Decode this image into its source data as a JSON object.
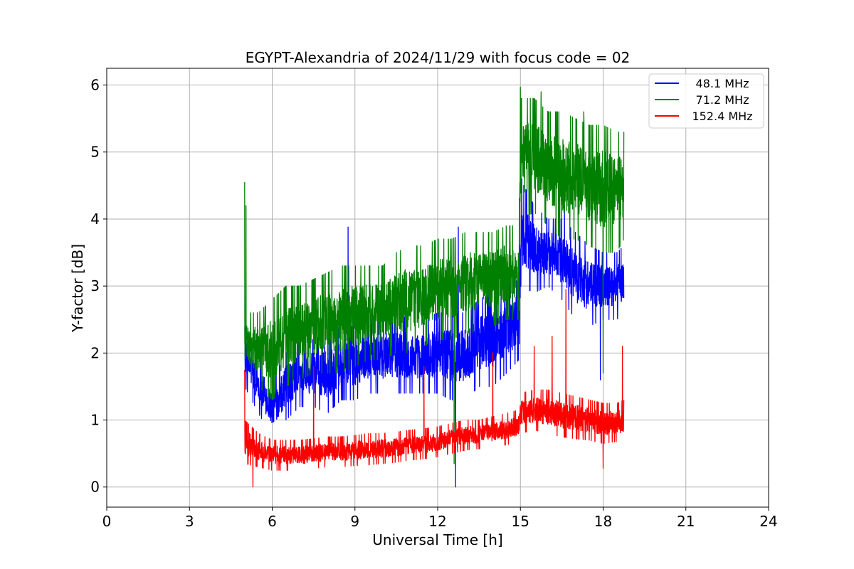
{
  "chart_data": {
    "type": "line",
    "title": "EGYPT-Alexandria of 2024/11/29 with focus code = 02",
    "xlabel": "Universal Time [h]",
    "ylabel": "Y-factor [dB]",
    "xlim": [
      0,
      24
    ],
    "ylim": [
      -0.3,
      6.25
    ],
    "xticks": [
      0,
      3,
      6,
      9,
      12,
      15,
      18,
      21,
      24
    ],
    "yticks": [
      0,
      1,
      2,
      3,
      4,
      5,
      6
    ],
    "xtick_labels": [
      "0",
      "3",
      "6",
      "9",
      "12",
      "15",
      "18",
      "21",
      "24"
    ],
    "ytick_labels": [
      "0",
      "1",
      "2",
      "3",
      "4",
      "5",
      "6"
    ],
    "grid": true,
    "legend_position": "top-right",
    "time_range": [
      5.0,
      18.75
    ],
    "series": [
      {
        "name": "48.1 MHz",
        "color": "#0000ff",
        "x": [
          5.0,
          5.5,
          6.0,
          6.5,
          7.0,
          7.5,
          8.0,
          8.5,
          9.0,
          9.5,
          10.0,
          10.5,
          11.0,
          11.5,
          12.0,
          12.5,
          13.0,
          13.5,
          14.0,
          14.5,
          14.95,
          15.0,
          15.5,
          16.0,
          16.5,
          17.0,
          17.5,
          18.0,
          18.5,
          18.75
        ],
        "y": [
          1.7,
          1.4,
          1.0,
          1.4,
          1.6,
          1.6,
          1.5,
          1.6,
          1.6,
          1.7,
          1.7,
          1.7,
          1.7,
          1.7,
          1.7,
          1.6,
          1.6,
          1.8,
          1.9,
          2.1,
          2.2,
          3.5,
          3.4,
          3.5,
          3.3,
          3.1,
          2.9,
          3.0,
          3.0,
          3.1
        ],
        "min": [
          1.5,
          1.1,
          0.75,
          1.0,
          1.2,
          1.2,
          1.1,
          1.3,
          1.3,
          1.4,
          1.4,
          1.4,
          1.4,
          1.4,
          1.4,
          1.3,
          1.3,
          1.5,
          1.5,
          1.7,
          1.9,
          3.0,
          2.9,
          3.0,
          2.8,
          2.5,
          2.4,
          2.5,
          2.5,
          2.6
        ],
        "max": [
          2.4,
          2.0,
          1.6,
          2.0,
          2.2,
          2.2,
          2.3,
          2.4,
          2.4,
          2.5,
          2.5,
          2.6,
          2.5,
          2.5,
          2.6,
          2.6,
          2.6,
          2.8,
          2.9,
          3.0,
          3.1,
          4.6,
          4.2,
          4.0,
          4.0,
          3.8,
          3.6,
          3.5,
          3.5,
          3.6
        ],
        "spikes": [
          [
            8.75,
            3.88
          ],
          [
            12.65,
            0.0
          ],
          [
            12.75,
            3.88
          ],
          [
            15.05,
            4.6
          ],
          [
            16.6,
            4.2
          ],
          [
            17.9,
            1.6
          ]
        ]
      },
      {
        "name": "71.2 MHz",
        "color": "#008000",
        "x": [
          5.0,
          5.5,
          6.0,
          6.5,
          7.0,
          7.5,
          8.0,
          8.5,
          9.0,
          9.5,
          10.0,
          10.5,
          11.0,
          11.5,
          12.0,
          12.5,
          13.0,
          13.5,
          14.0,
          14.5,
          14.95,
          15.0,
          15.5,
          16.0,
          16.5,
          17.0,
          17.5,
          18.0,
          18.5,
          18.75
        ],
        "y": [
          2.0,
          1.9,
          2.0,
          2.1,
          2.1,
          2.1,
          2.2,
          2.2,
          2.3,
          2.3,
          2.3,
          2.4,
          2.5,
          2.5,
          2.6,
          2.6,
          2.7,
          2.7,
          2.8,
          2.9,
          3.0,
          4.8,
          4.8,
          4.6,
          4.5,
          4.5,
          4.4,
          4.3,
          4.3,
          4.4
        ],
        "min": [
          1.7,
          1.5,
          1.3,
          1.5,
          1.6,
          1.7,
          1.7,
          1.7,
          1.8,
          1.9,
          1.9,
          2.0,
          2.0,
          2.1,
          2.2,
          2.2,
          2.3,
          2.3,
          2.4,
          2.5,
          2.5,
          4.0,
          4.1,
          3.9,
          3.7,
          3.7,
          3.6,
          3.5,
          3.5,
          3.7
        ],
        "max": [
          2.6,
          2.6,
          2.8,
          3.0,
          3.0,
          3.1,
          3.2,
          3.3,
          3.3,
          3.3,
          3.3,
          3.5,
          3.6,
          3.6,
          3.7,
          3.7,
          3.8,
          3.8,
          3.8,
          3.9,
          3.9,
          5.8,
          5.8,
          5.6,
          5.6,
          5.5,
          5.4,
          5.4,
          5.3,
          5.3
        ],
        "spikes": [
          [
            5.0,
            4.55
          ],
          [
            5.05,
            4.2
          ],
          [
            12.6,
            0.35
          ],
          [
            15.0,
            5.97
          ],
          [
            15.75,
            5.9
          ],
          [
            17.3,
            5.6
          ],
          [
            18.0,
            1.7
          ]
        ]
      },
      {
        "name": "152.4 MHz",
        "color": "#ff0000",
        "x": [
          5.0,
          5.5,
          6.0,
          6.5,
          7.0,
          7.5,
          8.0,
          8.5,
          9.0,
          9.5,
          10.0,
          10.5,
          11.0,
          11.5,
          12.0,
          12.5,
          13.0,
          13.5,
          14.0,
          14.5,
          14.95,
          15.0,
          15.5,
          16.0,
          16.5,
          17.0,
          17.5,
          18.0,
          18.5,
          18.75
        ],
        "y": [
          0.6,
          0.45,
          0.4,
          0.4,
          0.4,
          0.42,
          0.45,
          0.45,
          0.47,
          0.5,
          0.5,
          0.52,
          0.55,
          0.57,
          0.6,
          0.65,
          0.7,
          0.72,
          0.75,
          0.8,
          0.85,
          1.0,
          1.05,
          1.05,
          1.0,
          1.0,
          0.95,
          0.9,
          0.9,
          0.95
        ],
        "min": [
          0.35,
          0.3,
          0.25,
          0.25,
          0.25,
          0.28,
          0.3,
          0.3,
          0.32,
          0.33,
          0.35,
          0.37,
          0.4,
          0.42,
          0.45,
          0.5,
          0.55,
          0.57,
          0.6,
          0.63,
          0.67,
          0.8,
          0.85,
          0.8,
          0.75,
          0.72,
          0.7,
          0.65,
          0.68,
          0.7
        ],
        "max": [
          1.0,
          0.8,
          0.7,
          0.7,
          0.7,
          0.72,
          0.75,
          0.75,
          0.77,
          0.8,
          0.8,
          0.82,
          0.85,
          0.87,
          0.9,
          0.95,
          1.0,
          1.0,
          1.05,
          1.1,
          1.15,
          1.4,
          1.45,
          1.45,
          1.4,
          1.35,
          1.3,
          1.25,
          1.25,
          1.3
        ],
        "spikes": [
          [
            5.0,
            1.75
          ],
          [
            5.3,
            0.0
          ],
          [
            7.5,
            1.8
          ],
          [
            11.5,
            1.8
          ],
          [
            14.0,
            2.0
          ],
          [
            15.5,
            2.1
          ],
          [
            16.15,
            2.25
          ],
          [
            16.65,
            2.95
          ],
          [
            18.0,
            0.28
          ],
          [
            18.7,
            2.1
          ]
        ]
      }
    ]
  }
}
